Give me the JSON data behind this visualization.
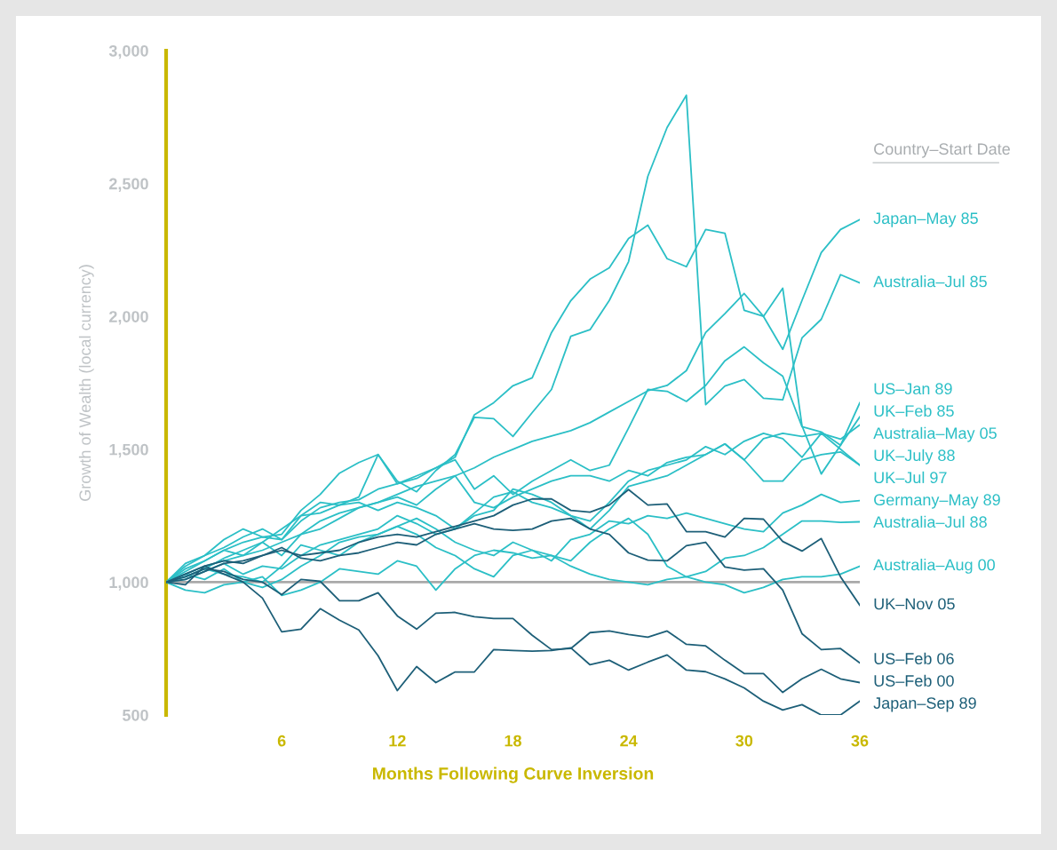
{
  "chart_data": {
    "type": "line",
    "xlabel": "Months Following Curve Inversion",
    "ylabel": "Growth of Wealth (local currency)",
    "legend_title": "Country–Start Date",
    "legend": "right",
    "grid": false,
    "marker": "none",
    "line_style": "solid",
    "xlim": [
      0,
      36
    ],
    "xticks": [
      6,
      12,
      18,
      24,
      30,
      36
    ],
    "ylim": [
      500,
      3000
    ],
    "yticks": [
      {
        "value": 500,
        "label": "500"
      },
      {
        "value": 1000,
        "label": "1,000"
      },
      {
        "value": 1500,
        "label": "1,500"
      },
      {
        "value": 2000,
        "label": "2,000"
      },
      {
        "value": 2500,
        "label": "2,500"
      },
      {
        "value": 3000,
        "label": "3,000"
      }
    ],
    "x": [
      0,
      1,
      2,
      3,
      4,
      5,
      6,
      7,
      8,
      9,
      10,
      11,
      12,
      13,
      14,
      15,
      16,
      17,
      18,
      19,
      20,
      21,
      22,
      23,
      24,
      25,
      26,
      27,
      28,
      29,
      30,
      31,
      32,
      33,
      34,
      35,
      36
    ],
    "ref_lines": [
      {
        "axis": "y",
        "value": 1000,
        "color": "#a9a9a9"
      }
    ],
    "series": [
      {
        "name": "Japan–May 85",
        "color": "#2bbfc6",
        "values": [
          1000,
          1040,
          1080,
          1120,
          1150,
          1170,
          1160,
          1230,
          1280,
          1300,
          1310,
          1350,
          1370,
          1400,
          1430,
          1470,
          1630,
          1675,
          1739,
          1769,
          1939,
          2059,
          2140,
          2183,
          2293,
          2343,
          2217,
          2187,
          2327,
          2313,
          2023,
          2000,
          1876,
          2060,
          2240,
          2327,
          2364
        ]
      },
      {
        "name": "Australia–Jul 85",
        "color": "#2bbfc6",
        "values": [
          1000,
          1070,
          1100,
          1160,
          1200,
          1170,
          1180,
          1270,
          1330,
          1410,
          1450,
          1480,
          1380,
          1340,
          1420,
          1480,
          1620,
          1615,
          1548,
          1638,
          1725,
          1925,
          1950,
          2060,
          2206,
          2527,
          2711,
          2832,
          1668,
          1738,
          1762,
          1692,
          1686,
          1919,
          1989,
          2157,
          2126
        ]
      },
      {
        "name": "US–Jan 89",
        "color": "#2bbfc6",
        "values": [
          1000,
          1030,
          1060,
          1080,
          1100,
          1120,
          1150,
          1180,
          1200,
          1240,
          1280,
          1300,
          1330,
          1360,
          1380,
          1400,
          1430,
          1470,
          1500,
          1530,
          1550,
          1570,
          1600,
          1640,
          1680,
          1720,
          1740,
          1796,
          1939,
          2010,
          2086,
          2000,
          2106,
          1588,
          1407,
          1515,
          1675
        ]
      },
      {
        "name": "UK–Feb 85",
        "color": "#2bbfc6",
        "values": [
          1000,
          1050,
          1080,
          1120,
          1100,
          1150,
          1200,
          1250,
          1300,
          1290,
          1320,
          1480,
          1370,
          1390,
          1430,
          1460,
          1350,
          1400,
          1330,
          1380,
          1420,
          1460,
          1420,
          1440,
          1580,
          1725,
          1718,
          1680,
          1740,
          1833,
          1885,
          1825,
          1775,
          1585,
          1565,
          1515,
          1622
        ]
      },
      {
        "name": "Australia–May 05",
        "color": "#2bbfc6",
        "values": [
          1000,
          1020,
          1050,
          1090,
          1120,
          1150,
          1100,
          1180,
          1230,
          1260,
          1280,
          1300,
          1320,
          1290,
          1350,
          1400,
          1300,
          1280,
          1320,
          1350,
          1380,
          1400,
          1400,
          1380,
          1420,
          1400,
          1450,
          1470,
          1480,
          1520,
          1460,
          1540,
          1560,
          1548,
          1560,
          1538,
          1592
        ]
      },
      {
        "name": "UK–July 88",
        "color": "#2bbfc6",
        "values": [
          1000,
          1010,
          1040,
          1070,
          1030,
          1060,
          1050,
          1100,
          1140,
          1160,
          1180,
          1200,
          1250,
          1220,
          1180,
          1200,
          1260,
          1320,
          1340,
          1300,
          1280,
          1250,
          1200,
          1270,
          1360,
          1380,
          1400,
          1440,
          1480,
          1520,
          1460,
          1380,
          1380,
          1460,
          1480,
          1490,
          1440
        ]
      },
      {
        "name": "UK–Jul 97",
        "color": "#2bbfc6",
        "values": [
          1000,
          1060,
          1100,
          1130,
          1170,
          1200,
          1160,
          1250,
          1260,
          1290,
          1300,
          1270,
          1300,
          1280,
          1250,
          1200,
          1250,
          1270,
          1350,
          1330,
          1300,
          1250,
          1230,
          1300,
          1380,
          1420,
          1440,
          1460,
          1510,
          1480,
          1530,
          1560,
          1540,
          1470,
          1560,
          1500,
          1440
        ]
      },
      {
        "name": "Germany–May 89",
        "color": "#2bbfc6",
        "values": [
          1000,
          1030,
          1010,
          1050,
          1000,
          980,
          1010,
          1060,
          1100,
          1150,
          1170,
          1180,
          1210,
          1240,
          1200,
          1150,
          1120,
          1100,
          1150,
          1120,
          1080,
          1160,
          1180,
          1230,
          1220,
          1250,
          1240,
          1260,
          1240,
          1220,
          1200,
          1190,
          1260,
          1290,
          1330,
          1300,
          1307
        ]
      },
      {
        "name": "Australia–Jul 88",
        "color": "#2bbfc6",
        "values": [
          1000,
          1020,
          1050,
          1030,
          1020,
          1000,
          1060,
          1140,
          1120,
          1100,
          1150,
          1180,
          1210,
          1180,
          1130,
          1100,
          1050,
          1020,
          1100,
          1120,
          1100,
          1080,
          1150,
          1200,
          1240,
          1180,
          1060,
          1020,
          1040,
          1090,
          1100,
          1130,
          1180,
          1230,
          1230,
          1225,
          1227
        ]
      },
      {
        "name": "Australia–Aug 00",
        "color": "#2bbfc6",
        "values": [
          1000,
          970,
          960,
          990,
          1000,
          1020,
          950,
          970,
          1000,
          1050,
          1040,
          1030,
          1080,
          1060,
          970,
          1050,
          1100,
          1120,
          1110,
          1090,
          1100,
          1060,
          1030,
          1010,
          1000,
          990,
          1010,
          1020,
          1000,
          990,
          960,
          980,
          1010,
          1020,
          1020,
          1030,
          1060
        ]
      },
      {
        "name": "UK–Nov 05",
        "color": "#1d5f78",
        "values": [
          1000,
          1010,
          1040,
          1070,
          1080,
          1100,
          1120,
          1100,
          1110,
          1120,
          1150,
          1170,
          1180,
          1170,
          1190,
          1210,
          1230,
          1250,
          1290,
          1313,
          1313,
          1270,
          1263,
          1290,
          1348,
          1290,
          1294,
          1190,
          1190,
          1170,
          1240,
          1237,
          1153,
          1117,
          1164,
          1020,
          913
        ]
      },
      {
        "name": "US–Feb 06",
        "color": "#1d5f78",
        "values": [
          1000,
          1030,
          1060,
          1080,
          1070,
          1100,
          1130,
          1090,
          1080,
          1100,
          1110,
          1130,
          1150,
          1140,
          1180,
          1200,
          1220,
          1200,
          1195,
          1200,
          1230,
          1240,
          1200,
          1180,
          1110,
          1083,
          1080,
          1137,
          1150,
          1057,
          1045,
          1050,
          970,
          806,
          746,
          750,
          696
        ]
      },
      {
        "name": "US–Feb 00",
        "color": "#1d5f78",
        "values": [
          1000,
          1020,
          1050,
          1040,
          1010,
          1000,
          953,
          1010,
          1003,
          930,
          930,
          960,
          873,
          823,
          883,
          886,
          870,
          863,
          863,
          800,
          746,
          750,
          810,
          816,
          803,
          793,
          816,
          766,
          760,
          706,
          656,
          656,
          585,
          636,
          672,
          636,
          622
        ]
      },
      {
        "name": "Japan–Sep 89",
        "color": "#1d5f78",
        "values": [
          1000,
          990,
          1060,
          1030,
          1000,
          940,
          813,
          823,
          900,
          857,
          820,
          723,
          592,
          682,
          622,
          662,
          662,
          746,
          743,
          740,
          743,
          753,
          689,
          706,
          669,
          699,
          726,
          669,
          663,
          636,
          602,
          552,
          519,
          539,
          500,
          500,
          552
        ]
      }
    ]
  }
}
